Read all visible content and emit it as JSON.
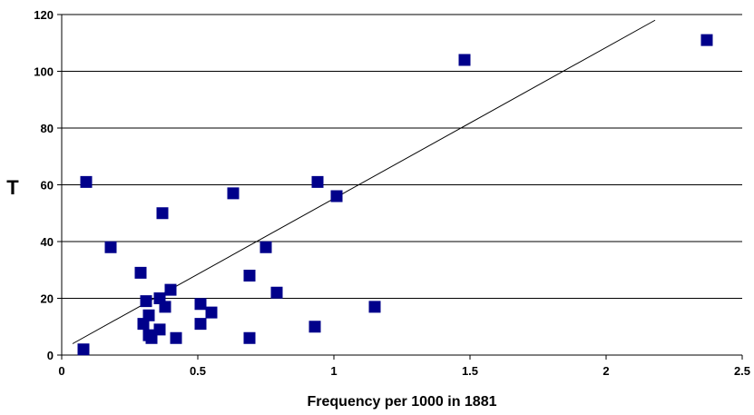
{
  "chart_data": {
    "type": "scatter",
    "title": "",
    "xlabel": "Frequency per 1000 in 1881",
    "ylabel": "T",
    "xlim": [
      0,
      2.5
    ],
    "ylim": [
      0,
      120
    ],
    "x_ticks": [
      "0",
      "0.5",
      "1",
      "1.5",
      "2",
      "2.5"
    ],
    "y_ticks": [
      "0",
      "20",
      "40",
      "60",
      "80",
      "100",
      "120"
    ],
    "grid": "horizontal",
    "marker_color": "#00008B",
    "trendline": {
      "x": [
        0.04,
        2.18
      ],
      "y": [
        4,
        118
      ]
    },
    "series": [
      {
        "points": [
          [
            0.08,
            2
          ],
          [
            0.09,
            61
          ],
          [
            0.18,
            38
          ],
          [
            0.29,
            29
          ],
          [
            0.3,
            11
          ],
          [
            0.31,
            19
          ],
          [
            0.32,
            7
          ],
          [
            0.32,
            14
          ],
          [
            0.33,
            6
          ],
          [
            0.36,
            20
          ],
          [
            0.36,
            9
          ],
          [
            0.37,
            50
          ],
          [
            0.38,
            17
          ],
          [
            0.4,
            23
          ],
          [
            0.42,
            6
          ],
          [
            0.51,
            18
          ],
          [
            0.51,
            11
          ],
          [
            0.55,
            15
          ],
          [
            0.63,
            57
          ],
          [
            0.69,
            28
          ],
          [
            0.69,
            6
          ],
          [
            0.75,
            38
          ],
          [
            0.79,
            22
          ],
          [
            0.93,
            10
          ],
          [
            0.94,
            61
          ],
          [
            1.01,
            56
          ],
          [
            1.15,
            17
          ],
          [
            1.48,
            104
          ],
          [
            2.37,
            111
          ]
        ]
      }
    ]
  }
}
